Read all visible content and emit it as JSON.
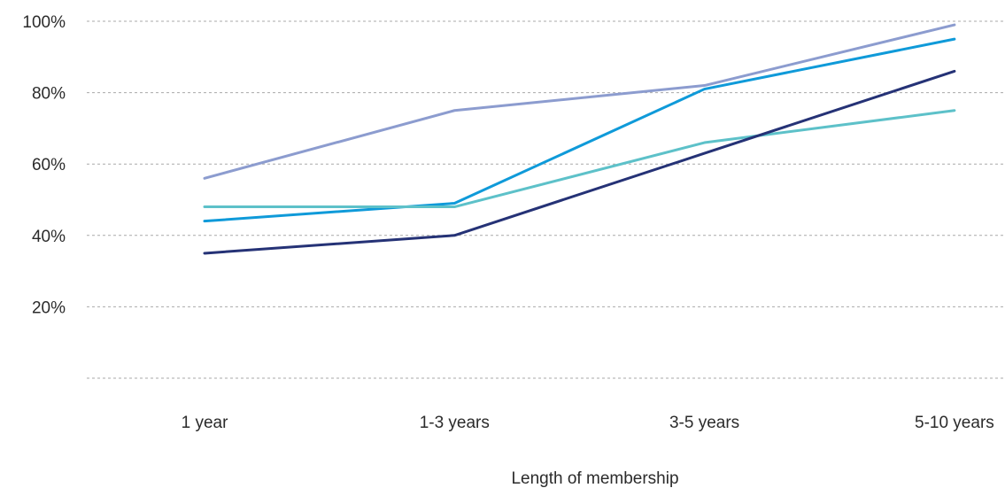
{
  "chart_data": {
    "type": "line",
    "title": "",
    "xlabel": "Length of membership",
    "ylabel": "",
    "categories": [
      "1 year",
      "1-3 years",
      "3-5 years",
      "5-10 years"
    ],
    "y_ticks": [
      0,
      20,
      40,
      60,
      80,
      100
    ],
    "y_tick_labels": [
      "",
      "20%",
      "40%",
      "60%",
      "80%",
      "100%"
    ],
    "ylim": [
      0,
      100
    ],
    "grid": true,
    "legend": "none",
    "series": [
      {
        "color": "#8c9ccf",
        "values": [
          56,
          75,
          82,
          99
        ]
      },
      {
        "color": "#0f9ad9",
        "values": [
          44,
          49,
          81,
          95
        ]
      },
      {
        "color": "#5dc1c9",
        "values": [
          48,
          48,
          66,
          75
        ]
      },
      {
        "color": "#253276",
        "values": [
          35,
          40,
          63,
          86
        ]
      }
    ]
  }
}
